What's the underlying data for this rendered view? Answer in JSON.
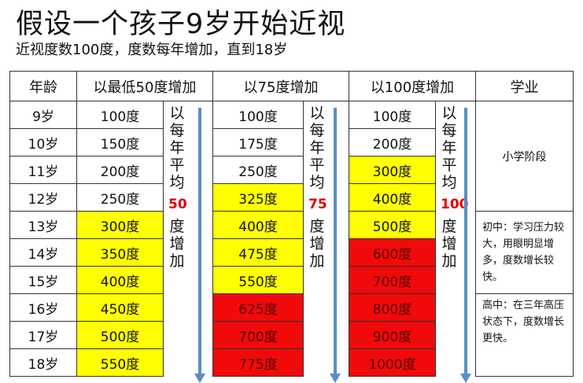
{
  "title": "假设一个孩子9岁开始近视",
  "subtitle": "近视度数100度，度数每年增加，直到18岁",
  "headers": [
    "年龄",
    "以最低50度增加",
    "以75度增加",
    "以100度增加",
    "学业"
  ],
  "ages": [
    "9岁",
    "10岁",
    "11岁",
    "12岁",
    "13岁",
    "14岁",
    "15岁",
    "16岁",
    "17岁",
    "18岁"
  ],
  "col50": [
    "100度",
    "150度",
    "200度",
    "250度",
    "300度",
    "350度",
    "400度",
    "450度",
    "500度",
    "550度"
  ],
  "col75": [
    "100度",
    "175度",
    "250度",
    "325度",
    "400度",
    "475度",
    "550度",
    "625度",
    "700度",
    "775度"
  ],
  "col100": [
    "100度",
    "200度",
    "300度",
    "400度",
    "500度",
    "600度",
    "700度",
    "800度",
    "900度",
    "1000度"
  ],
  "col50_colors": [
    "",
    "",
    "",
    "",
    "y",
    "y",
    "y",
    "y",
    "y",
    "y"
  ],
  "col75_colors": [
    "",
    "",
    "",
    "y",
    "y",
    "y",
    "y",
    "r",
    "r",
    "r"
  ],
  "col100_colors": [
    "",
    "",
    "y",
    "y",
    "y",
    "r",
    "r",
    "r",
    "r",
    "r"
  ],
  "colors": {
    "y": "#ffff00",
    "r": "#f00a0a",
    "arrow": "#5b8ec4"
  },
  "arrow_text": {
    "pre": "以每年平均",
    "n50": "50",
    "n75": "75",
    "n100": "100",
    "post": "度增加"
  },
  "study": {
    "primary": "小学阶段",
    "middle": "初中：学习压力较大，用眼明显增多，度数增长较快。",
    "high": "高中：在三年高压状态下，度数增长更快。"
  }
}
